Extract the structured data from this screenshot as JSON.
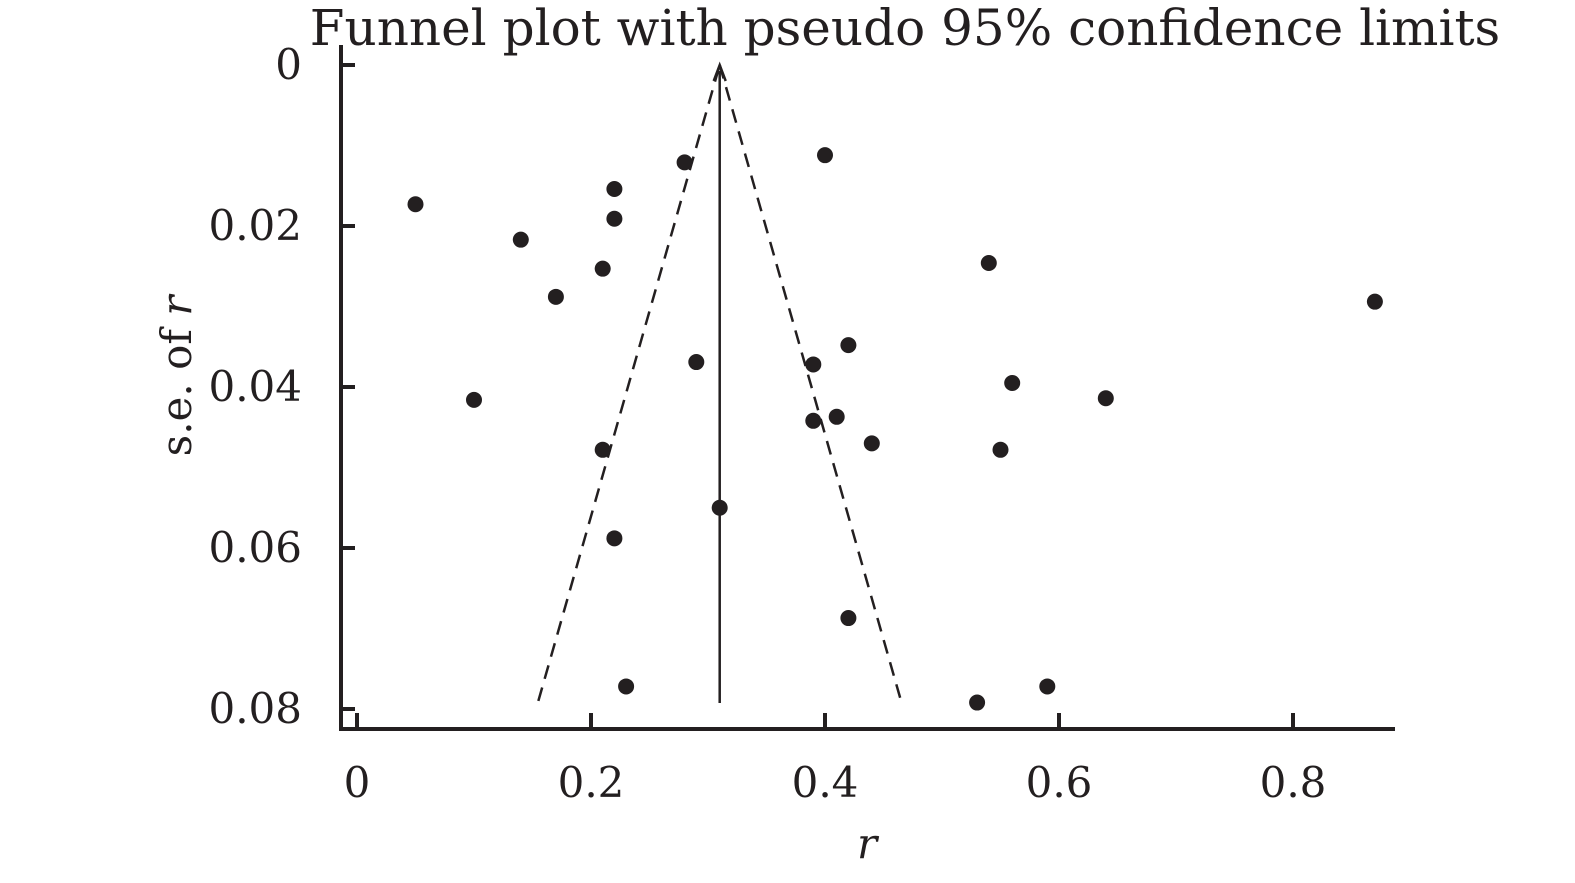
{
  "chart_data": {
    "type": "scatter",
    "title": "Funnel plot with pseudo 95% confidence limits",
    "xlabel_prefix": "",
    "xlabel_var": "r",
    "ylabel_prefix": "s.e. of ",
    "ylabel_var": "r",
    "xlim": [
      0,
      0.88
    ],
    "ylim": [
      0,
      0.082
    ],
    "y_inverted": true,
    "x_ticks": [
      0,
      0.2,
      0.4,
      0.6,
      0.8
    ],
    "x_tick_labels": [
      "0",
      "0.2",
      "0.4",
      "0.6",
      "0.8"
    ],
    "y_ticks": [
      0,
      0.02,
      0.04,
      0.06,
      0.08
    ],
    "y_tick_labels": [
      "0",
      "0.02",
      "0.04",
      "0.06",
      "0.08"
    ],
    "grid": false,
    "pooled_estimate": 0.31,
    "funnel": {
      "apex": [
        0.31,
        0.0
      ],
      "base_left": [
        0.155,
        0.079
      ],
      "base_right": [
        0.465,
        0.079
      ]
    },
    "points": [
      {
        "x": 0.05,
        "y": 0.0173
      },
      {
        "x": 0.1,
        "y": 0.0416
      },
      {
        "x": 0.14,
        "y": 0.0217
      },
      {
        "x": 0.17,
        "y": 0.0288
      },
      {
        "x": 0.21,
        "y": 0.0253
      },
      {
        "x": 0.21,
        "y": 0.0478
      },
      {
        "x": 0.22,
        "y": 0.0154
      },
      {
        "x": 0.22,
        "y": 0.0191
      },
      {
        "x": 0.22,
        "y": 0.0588
      },
      {
        "x": 0.23,
        "y": 0.0772
      },
      {
        "x": 0.28,
        "y": 0.0121
      },
      {
        "x": 0.29,
        "y": 0.0369
      },
      {
        "x": 0.31,
        "y": 0.055
      },
      {
        "x": 0.39,
        "y": 0.0372
      },
      {
        "x": 0.39,
        "y": 0.0442
      },
      {
        "x": 0.4,
        "y": 0.0112
      },
      {
        "x": 0.41,
        "y": 0.0437
      },
      {
        "x": 0.42,
        "y": 0.0348
      },
      {
        "x": 0.42,
        "y": 0.0687
      },
      {
        "x": 0.44,
        "y": 0.047
      },
      {
        "x": 0.53,
        "y": 0.0792
      },
      {
        "x": 0.54,
        "y": 0.0246
      },
      {
        "x": 0.55,
        "y": 0.0478
      },
      {
        "x": 0.56,
        "y": 0.0395
      },
      {
        "x": 0.59,
        "y": 0.0772
      },
      {
        "x": 0.64,
        "y": 0.0414
      },
      {
        "x": 0.87,
        "y": 0.0294
      }
    ]
  }
}
